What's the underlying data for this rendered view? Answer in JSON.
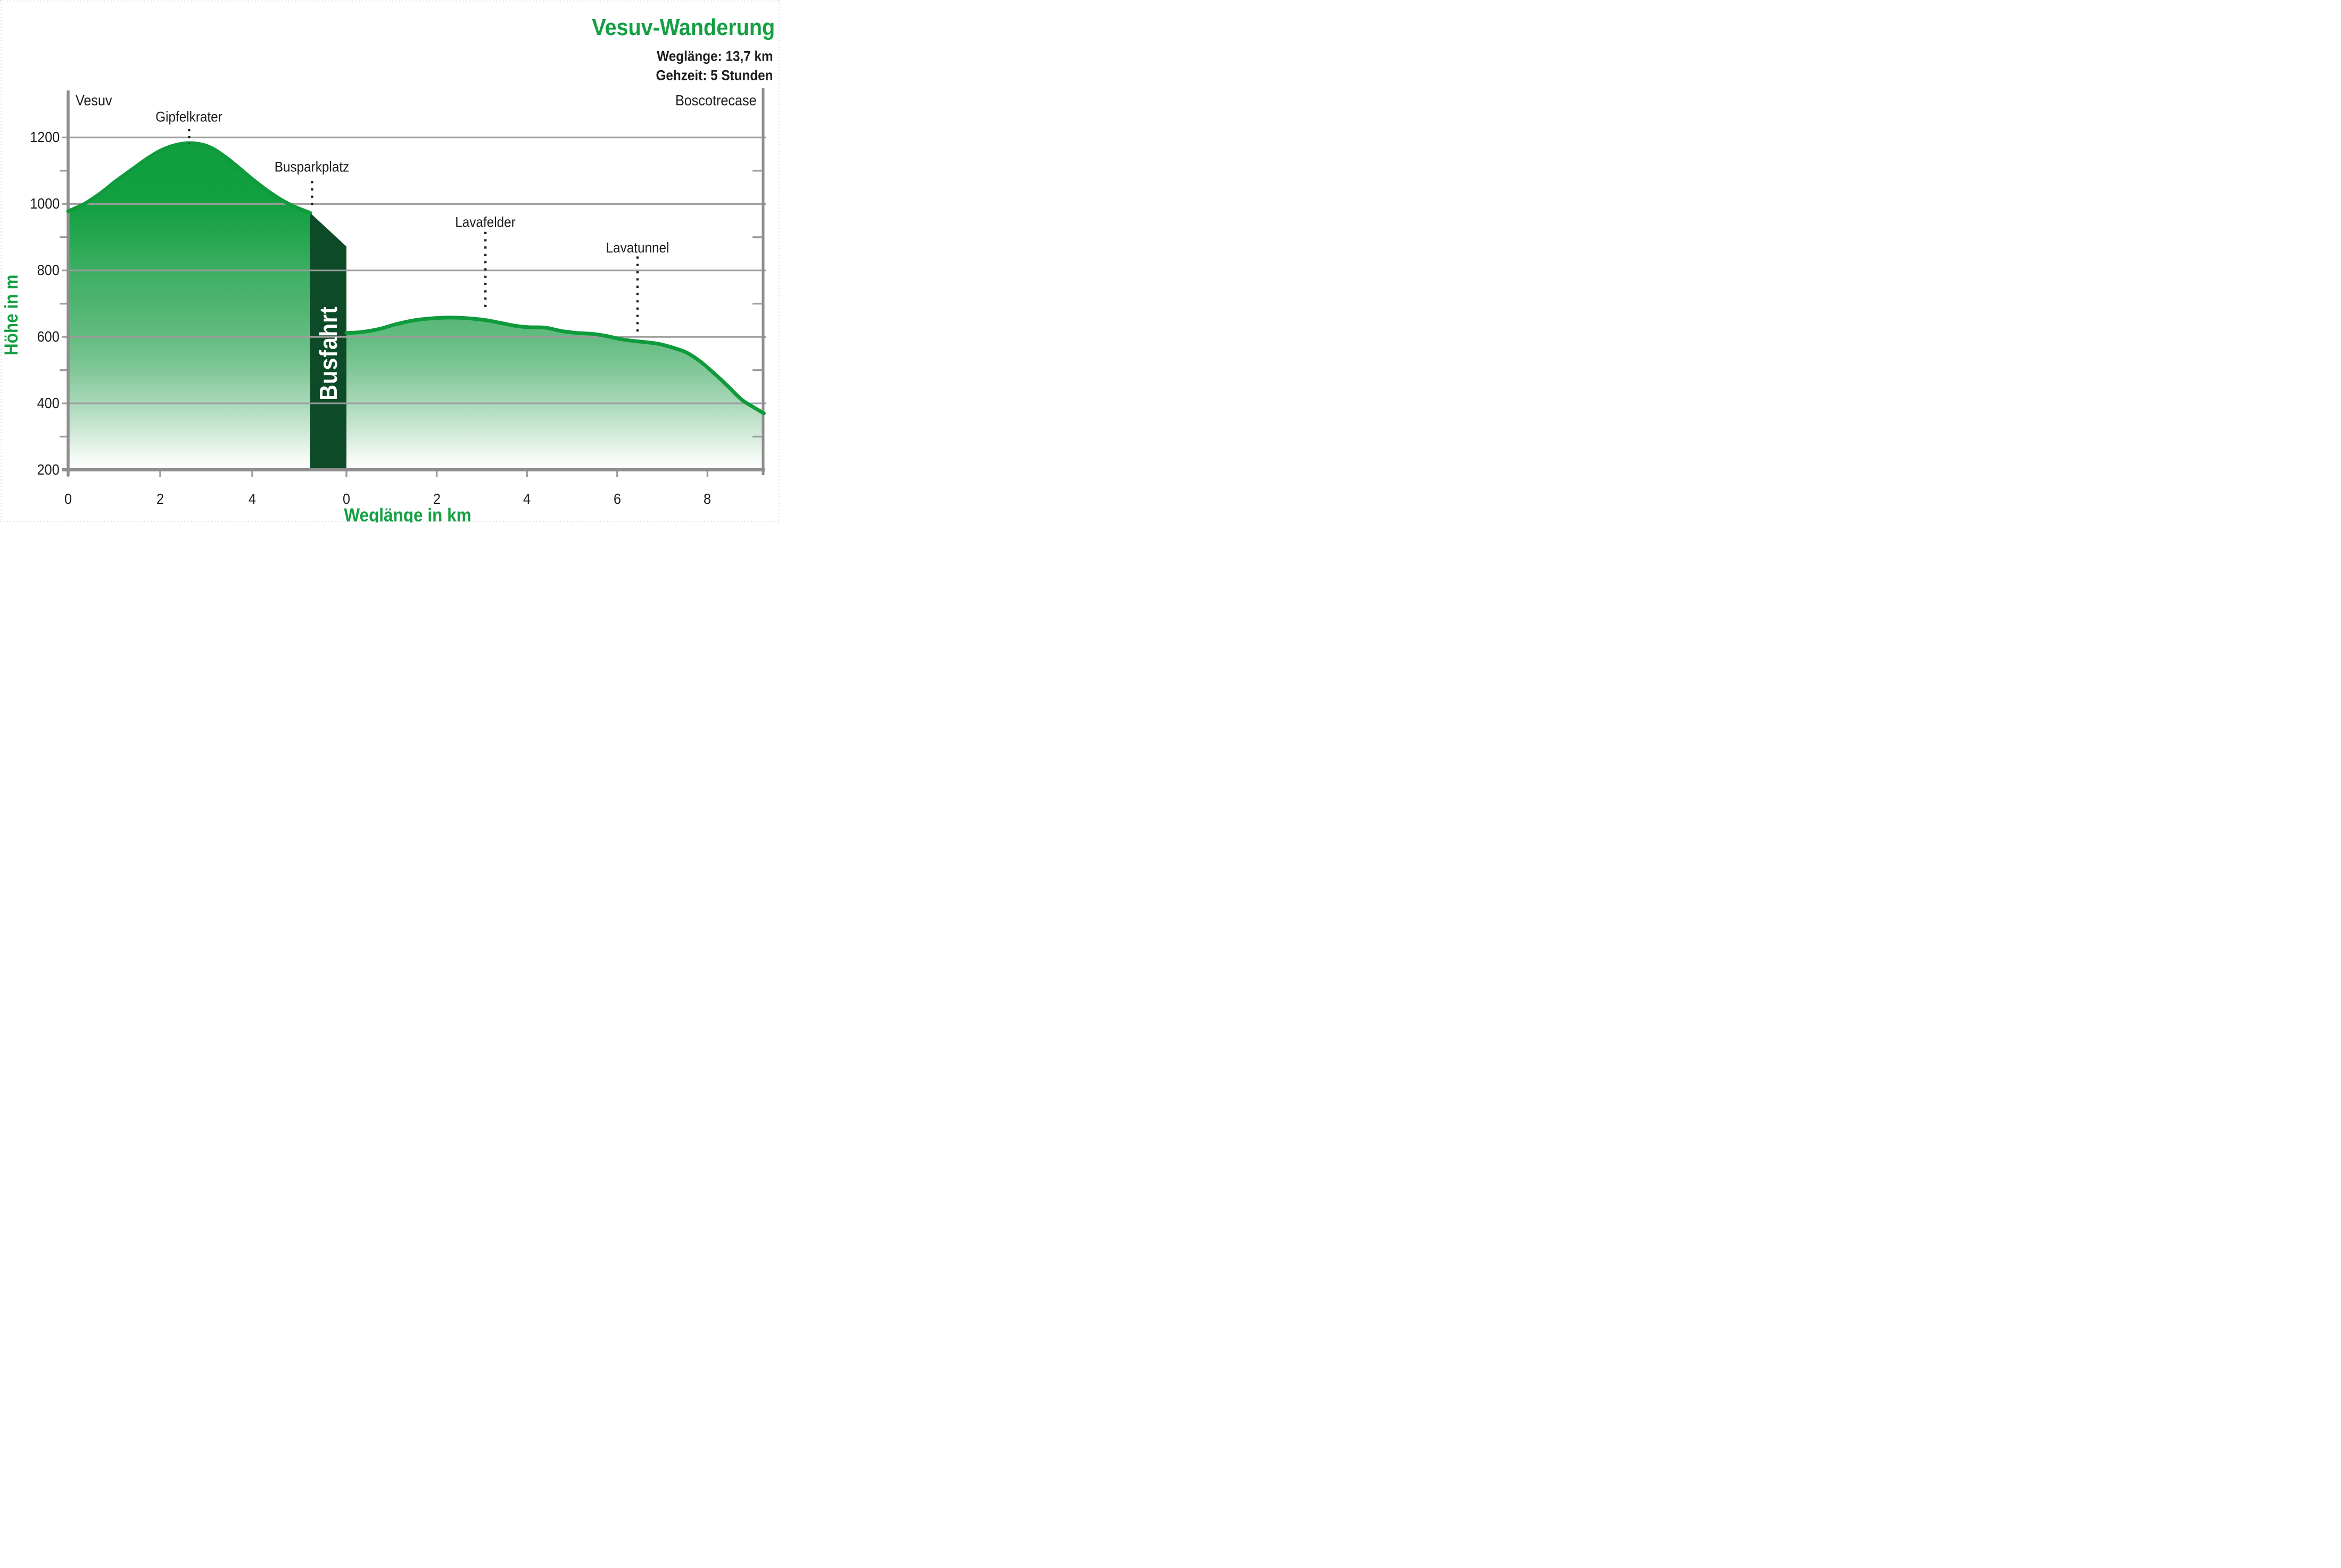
{
  "header": {
    "title": "Vesuv-Wanderung",
    "subtitle_line1": "Weglänge: 13,7 km",
    "subtitle_line2": "Gehzeit: 5 Stunden"
  },
  "colors": {
    "accent_green": "#149f43",
    "profile_fill_top_green": "#0f9e3d",
    "profile_stroke_green": "#0f9a3c",
    "band_dark_green": "#0d4a27",
    "gridline_grey": "#9c9c9c",
    "axis_grey": "#8e8e8e",
    "text_black": "#1c1c1c",
    "edge_dots_grey": "#d6d6d6"
  },
  "chart_data": {
    "type": "area",
    "title": "Vesuv-Wanderung",
    "xlabel": "Weglänge in km",
    "ylabel": "Höhe in m",
    "start_label": "Vesuv",
    "end_label": "Boscotrecase",
    "grid": true,
    "y_axis": {
      "unit": "m",
      "axis_value": 200,
      "top_value": 1300,
      "gridline_values": [
        400,
        600,
        800,
        1000,
        1200
      ],
      "minor_tick_values": [
        300,
        500,
        700,
        900,
        1100
      ],
      "tick_labels": [
        "1200",
        "1000",
        "800",
        "600",
        "400",
        "200"
      ],
      "tick_label_values": [
        1200,
        1000,
        800,
        600,
        400,
        200
      ]
    },
    "segments": [
      {
        "name": "aufstieg-vesuv",
        "tick_km": [
          0,
          2,
          4
        ],
        "tick_labels": [
          "0",
          "2",
          "4"
        ],
        "end_km": 5.26,
        "points_km_m": [
          [
            0,
            978
          ],
          [
            0.35,
            1000
          ],
          [
            0.7,
            1032
          ],
          [
            1.05,
            1070
          ],
          [
            1.4,
            1105
          ],
          [
            1.7,
            1135
          ],
          [
            2.0,
            1160
          ],
          [
            2.3,
            1176
          ],
          [
            2.6,
            1183
          ],
          [
            2.9,
            1179
          ],
          [
            3.15,
            1166
          ],
          [
            3.4,
            1143
          ],
          [
            3.7,
            1110
          ],
          [
            4.0,
            1075
          ],
          [
            4.3,
            1043
          ],
          [
            4.6,
            1015
          ],
          [
            4.9,
            993
          ],
          [
            5.26,
            973
          ]
        ]
      },
      {
        "name": "abstieg-boscotrecase",
        "tick_km": [
          0,
          2,
          4,
          6,
          8
        ],
        "tick_labels": [
          "0",
          "2",
          "4",
          "6",
          "8"
        ],
        "end_km": 9.25,
        "points_km_m": [
          [
            0,
            612
          ],
          [
            0.3,
            614
          ],
          [
            0.7,
            623
          ],
          [
            1.1,
            638
          ],
          [
            1.5,
            650
          ],
          [
            1.9,
            656
          ],
          [
            2.3,
            658
          ],
          [
            2.7,
            656
          ],
          [
            3.1,
            650
          ],
          [
            3.45,
            641
          ],
          [
            3.75,
            633
          ],
          [
            4.05,
            629
          ],
          [
            4.4,
            628
          ],
          [
            4.75,
            618
          ],
          [
            5.1,
            612
          ],
          [
            5.45,
            609
          ],
          [
            5.75,
            603
          ],
          [
            6.05,
            594
          ],
          [
            6.35,
            588
          ],
          [
            6.65,
            584
          ],
          [
            6.95,
            578
          ],
          [
            7.25,
            567
          ],
          [
            7.55,
            552
          ],
          [
            7.85,
            525
          ],
          [
            8.15,
            490
          ],
          [
            8.45,
            452
          ],
          [
            8.75,
            412
          ],
          [
            9.0,
            390
          ],
          [
            9.25,
            370
          ]
        ]
      }
    ],
    "bus_band": {
      "label": "Busfahrt",
      "from_km_seg1": 5.26,
      "top_left_m": 973,
      "top_right_m": 872,
      "bottom_m": 200
    },
    "stations": [
      {
        "label": "Gipfelkrater",
        "segment": 0,
        "km": 2.63,
        "label_m": 1261,
        "dot_from_m": 1226,
        "dot_to_m": 1180
      },
      {
        "label": "Busparkplatz",
        "segment": 0,
        "km": 5.3,
        "label_m": 1111,
        "dot_from_m": 1069,
        "dot_to_m": 983
      },
      {
        "label": "Lavafelder",
        "segment": 1,
        "km": 3.08,
        "label_m": 944,
        "dot_from_m": 916,
        "dot_to_m": 688
      },
      {
        "label": "Lavatunnel",
        "segment": 1,
        "km": 6.45,
        "label_m": 868,
        "dot_from_m": 842,
        "dot_to_m": 611
      }
    ]
  }
}
